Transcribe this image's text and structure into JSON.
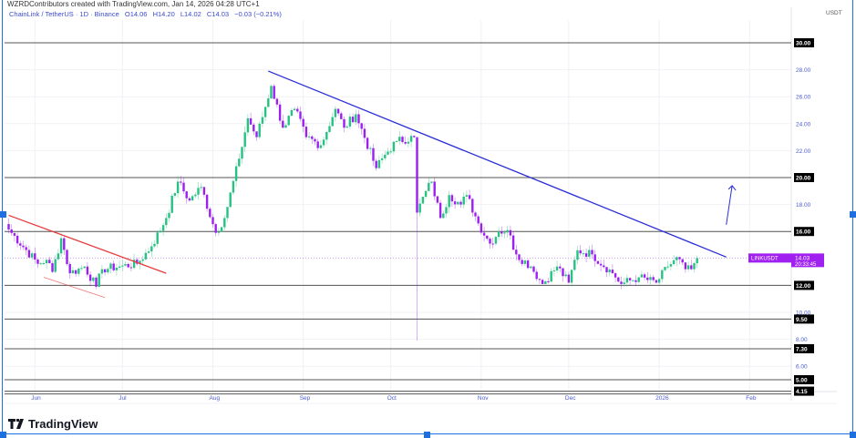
{
  "attribution": "WZRDContributors created with TradingView.com, Jan 14, 2026 04:28 UTC+1",
  "legend": {
    "symbol": "ChainLink / TetherUS · 1D · Binance",
    "open": "O14.06",
    "high": "H14.20",
    "low": "L14.02",
    "close": "C14.03",
    "change": "−0.03 (−0.21%)"
  },
  "currency": "USDT",
  "footer": {
    "logo": "TradingView"
  },
  "colors": {
    "up": "#26c281",
    "down": "#9c1ff2",
    "axis_text": "#4a5bd6",
    "trend_blue": "#2b2fd6",
    "trend_red": "#e83b3b",
    "level": "#555555",
    "price_tag": "#a020f0"
  },
  "chart_data": {
    "type": "candlestick",
    "symbol": "LINKUSDT",
    "interval": "1D",
    "start_date": "2025-05-23",
    "last_date": "2026-01-14",
    "close_keypoints": [
      [
        0,
        16.15
      ],
      [
        10,
        13.6
      ],
      [
        13,
        13.9
      ],
      [
        15,
        13.0
      ],
      [
        18,
        15.5
      ],
      [
        21,
        12.9
      ],
      [
        26,
        13.4
      ],
      [
        30,
        11.9
      ],
      [
        32,
        13.2
      ],
      [
        38,
        13.4
      ],
      [
        44,
        13.6
      ],
      [
        49,
        14.9
      ],
      [
        54,
        17.0
      ],
      [
        58,
        19.7
      ],
      [
        62,
        18.3
      ],
      [
        66,
        19.3
      ],
      [
        71,
        15.9
      ],
      [
        74,
        17.0
      ],
      [
        79,
        21.4
      ],
      [
        82,
        24.4
      ],
      [
        85,
        23.0
      ],
      [
        90,
        26.8
      ],
      [
        94,
        23.7
      ],
      [
        98,
        25.1
      ],
      [
        102,
        23.0
      ],
      [
        107,
        22.4
      ],
      [
        112,
        25.1
      ],
      [
        115,
        23.7
      ],
      [
        119,
        24.7
      ],
      [
        126,
        20.7
      ],
      [
        129,
        21.7
      ],
      [
        133,
        22.7
      ],
      [
        139,
        23.0
      ],
      [
        140,
        17.4
      ],
      [
        143,
        19.0
      ],
      [
        145,
        19.7
      ],
      [
        148,
        17.0
      ],
      [
        151,
        18.7
      ],
      [
        155,
        18.0
      ],
      [
        157,
        18.7
      ],
      [
        161,
        16.6
      ],
      [
        165,
        15.1
      ],
      [
        168,
        16.0
      ],
      [
        171,
        16.1
      ],
      [
        174,
        14.3
      ],
      [
        179,
        13.4
      ],
      [
        183,
        12.1
      ],
      [
        188,
        13.4
      ],
      [
        192,
        12.2
      ],
      [
        195,
        14.6
      ],
      [
        200,
        14.3
      ],
      [
        207,
        12.9
      ],
      [
        210,
        12.1
      ],
      [
        216,
        12.6
      ],
      [
        222,
        12.2
      ],
      [
        226,
        13.4
      ],
      [
        229,
        14.1
      ],
      [
        232,
        13.2
      ],
      [
        234,
        13.2
      ],
      [
        236,
        14.03
      ]
    ],
    "wick_extremes": [
      {
        "day": 140,
        "low": 7.9
      }
    ],
    "ylim": [
      3.8,
      31.5
    ],
    "y_ticks": [
      "28.00",
      "26.00",
      "24.00",
      "22.00",
      "18.00",
      "10.00",
      "8.00",
      "6.00"
    ],
    "y_tick_values": [
      28,
      26,
      24,
      22,
      18,
      10,
      8,
      6
    ],
    "x_ticks": [
      {
        "label": "Jun",
        "date": "2025-06-01"
      },
      {
        "label": "Jul",
        "date": "2025-07-01"
      },
      {
        "label": "Aug",
        "date": "2025-08-01"
      },
      {
        "label": "Sep",
        "date": "2025-09-01"
      },
      {
        "label": "Oct",
        "date": "2025-10-01"
      },
      {
        "label": "Nov",
        "date": "2025-11-01"
      },
      {
        "label": "Dec",
        "date": "2025-12-01"
      },
      {
        "label": "2026",
        "date": "2026-01-01"
      },
      {
        "label": "Feb",
        "date": "2026-02-01"
      }
    ],
    "horizontal_levels": [
      {
        "value": 30,
        "label": "30.00"
      },
      {
        "value": 20,
        "label": "20.00"
      },
      {
        "value": 16,
        "label": "16.00"
      },
      {
        "value": 12,
        "label": "12.00"
      },
      {
        "value": 9.5,
        "label": "9.50"
      },
      {
        "value": 7.3,
        "label": "7.30"
      },
      {
        "value": 5,
        "label": "5.00"
      },
      {
        "value": 4.15,
        "label": "4.15"
      }
    ],
    "price_tag": {
      "symbol": "LINKUSDT",
      "price": "14.03",
      "countdown": "20:33:45",
      "value": 14.03
    },
    "trendlines": [
      {
        "name": "descending-resistance-blue",
        "color": "trend_blue",
        "from": [
          89,
          27.9
        ],
        "to": [
          246,
          14.1
        ]
      },
      {
        "name": "falling-wedge-upper-red",
        "color": "trend_red",
        "from": [
          0,
          17.2
        ],
        "to": [
          54,
          12.9
        ]
      },
      {
        "name": "falling-wedge-lower-red",
        "color": "trend_red",
        "from": [
          12,
          12.6
        ],
        "to": [
          33,
          11.1
        ]
      }
    ],
    "arrow": {
      "from": [
        246,
        16.5
      ],
      "to": [
        248,
        19.4
      ]
    }
  }
}
